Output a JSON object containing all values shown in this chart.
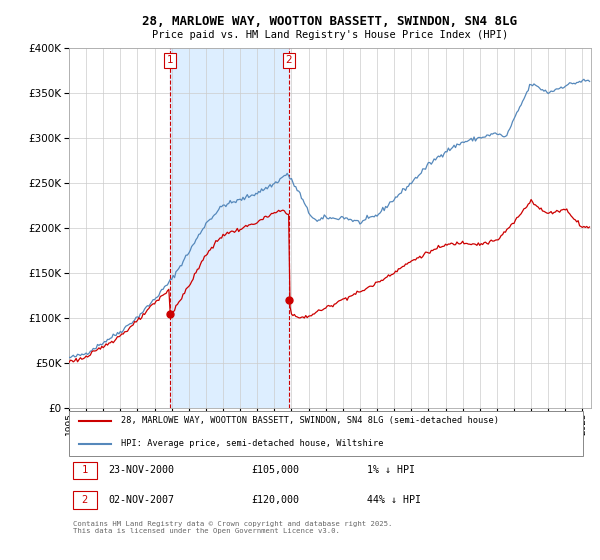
{
  "title_line1": "28, MARLOWE WAY, WOOTTON BASSETT, SWINDON, SN4 8LG",
  "title_line2": "Price paid vs. HM Land Registry's House Price Index (HPI)",
  "legend_line1": "28, MARLOWE WAY, WOOTTON BASSETT, SWINDON, SN4 8LG (semi-detached house)",
  "legend_line2": "HPI: Average price, semi-detached house, Wiltshire",
  "footnote": "Contains HM Land Registry data © Crown copyright and database right 2025.\nThis data is licensed under the Open Government Licence v3.0.",
  "sale1_label": "1",
  "sale1_date": "23-NOV-2000",
  "sale1_price": "£105,000",
  "sale1_hpi": "1% ↓ HPI",
  "sale2_label": "2",
  "sale2_date": "02-NOV-2007",
  "sale2_price": "£120,000",
  "sale2_hpi": "44% ↓ HPI",
  "sale1_x": 2000.9,
  "sale1_y": 105000,
  "sale2_x": 2007.84,
  "sale2_y": 120000,
  "red_line_color": "#cc0000",
  "blue_line_color": "#5588bb",
  "vline_color": "#cc0000",
  "shade_color": "#ddeeff",
  "background_color": "#ffffff",
  "grid_color": "#cccccc",
  "ylim": [
    0,
    400000
  ],
  "yticks": [
    0,
    50000,
    100000,
    150000,
    200000,
    250000,
    300000,
    350000,
    400000
  ],
  "xlim_start": 1995.0,
  "xlim_end": 2025.5
}
